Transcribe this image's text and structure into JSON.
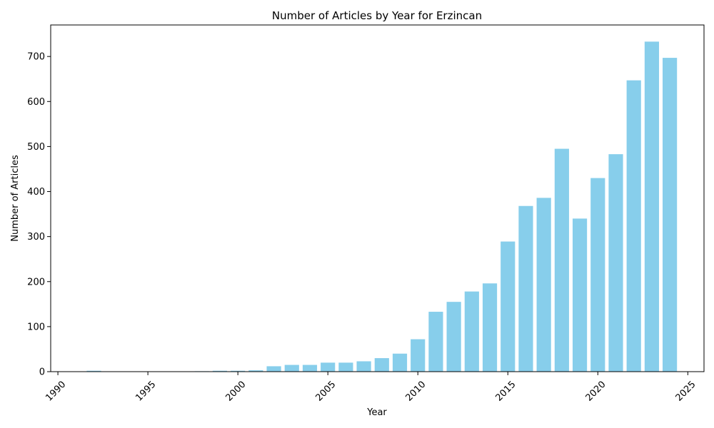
{
  "chart_data": {
    "type": "bar",
    "title": "Number of Articles by Year for Erzincan",
    "xlabel": "Year",
    "ylabel": "Number of Articles",
    "bar_color": "#87CEEB",
    "x": [
      1992,
      1998,
      1999,
      2000,
      2001,
      2002,
      2003,
      2004,
      2005,
      2006,
      2007,
      2008,
      2009,
      2010,
      2011,
      2012,
      2013,
      2014,
      2015,
      2016,
      2017,
      2018,
      2019,
      2020,
      2021,
      2022,
      2023,
      2024
    ],
    "values": [
      2,
      1,
      2,
      2,
      3,
      12,
      15,
      15,
      20,
      20,
      23,
      30,
      40,
      72,
      133,
      155,
      178,
      196,
      289,
      368,
      386,
      495,
      340,
      430,
      483,
      647,
      733,
      697
    ],
    "xlim": [
      1989.6,
      2025.9
    ],
    "ylim": [
      0,
      770
    ],
    "xticks": [
      1990,
      1995,
      2000,
      2005,
      2010,
      2015,
      2020,
      2025
    ],
    "yticks": [
      0,
      100,
      200,
      300,
      400,
      500,
      600,
      700
    ],
    "xtick_rotation": 45,
    "grid": false,
    "legend": "none"
  }
}
